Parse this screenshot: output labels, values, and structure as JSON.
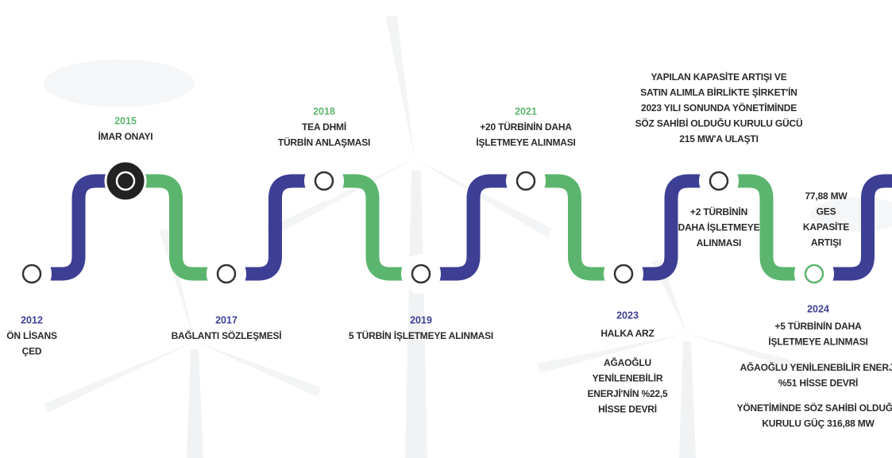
{
  "milestones": [
    {
      "year": "2012",
      "blocks": [
        [
          "ÖN LİSANS",
          "ÇED"
        ]
      ]
    },
    {
      "year": "2015",
      "blocks": [
        [
          "İMAR ONAYI"
        ]
      ]
    },
    {
      "year": "2017",
      "blocks": [
        [
          "BAĞLANTI SÖZLEŞMESİ"
        ]
      ]
    },
    {
      "year": "2018",
      "blocks": [
        [
          "TEA DHMİ",
          "TÜRBİN ANLAŞMASI"
        ]
      ]
    },
    {
      "year": "2019",
      "blocks": [
        [
          "5 TÜRBİN İŞLETMEYE ALINMASI"
        ]
      ]
    },
    {
      "year": "2021",
      "blocks": [
        [
          "+20 TÜRBİNİN DAHA",
          "İŞLETMEYE ALINMASI"
        ]
      ]
    },
    {
      "year": "2023",
      "blocks": [
        [
          "HALKA ARZ"
        ],
        [
          "AĞAOĞLU",
          "YENİLENEBİLİR",
          "ENERJİ'NİN %22,5",
          "HİSSE DEVRİ"
        ]
      ]
    },
    {
      "blocks": [
        [
          "YAPILAN KAPASİTE ARTIŞI VE",
          "SATIN ALIMLA BİRLİKTE ŞİRKET'İN",
          "2023 YILI SONUNDA YÖNETİMİNDE",
          "SÖZ SAHİBİ OLDUĞU KURULU GÜCÜ",
          "215 MW'A ULAŞTI"
        ],
        [
          "+2 TÜRBİNİN",
          "DAHA İŞLETMEYE",
          "ALINMASI"
        ]
      ]
    },
    {
      "blocks": [
        [
          "77,88 MW",
          "GES",
          "KAPASİTE",
          "ARTIŞI"
        ]
      ]
    },
    {
      "year": "2024",
      "blocks": [
        [
          "+5 TÜRBİNİN DAHA",
          "İŞLETMEYE ALINMASI"
        ],
        [
          "AĞAOĞLU YENİLENEBİLİR ENERJİ",
          "%51 HİSSE DEVRİ"
        ],
        [
          "YÖNETİMİNDE SÖZ SAHİBİ OLDUĞU",
          "KURULU GÜÇ 316,88 MW"
        ]
      ]
    }
  ]
}
